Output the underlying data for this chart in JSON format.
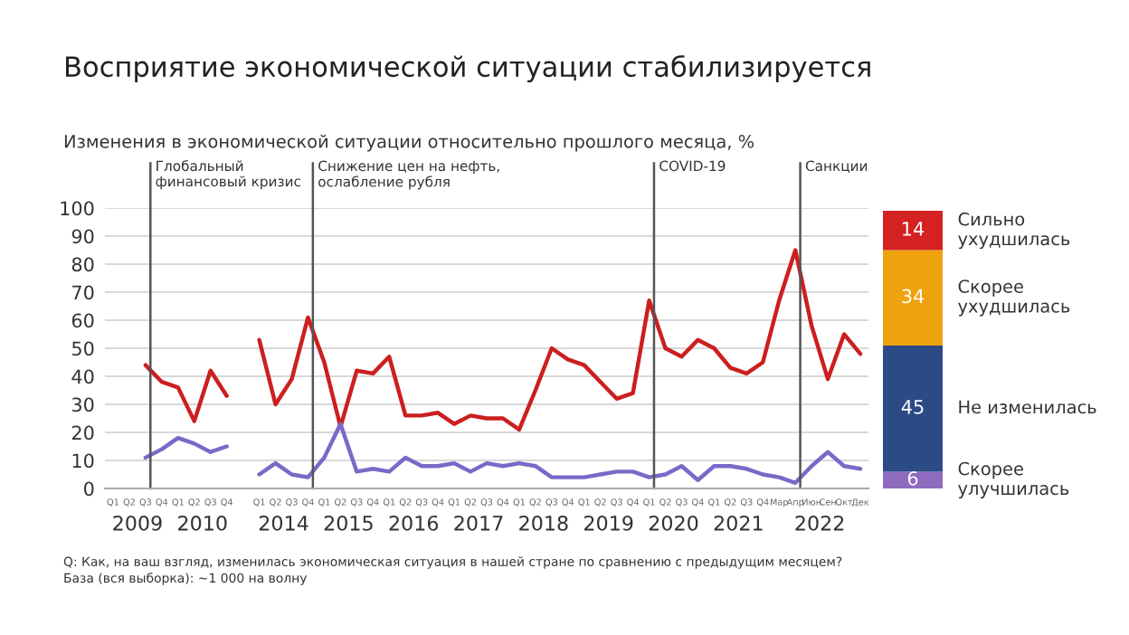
{
  "chart_data": [
    {
      "type": "line",
      "title": "Восприятие экономической ситуации стабилизируется",
      "subtitle": "Изменения в экономической ситуации относительно прошлого месяца, %",
      "categories": [
        "Q1",
        "Q2",
        "Q3",
        "Q4",
        "Q1",
        "Q2",
        "Q3",
        "Q4",
        null,
        "Q1",
        "Q2",
        "Q3",
        "Q4",
        "Q1",
        "Q2",
        "Q3",
        "Q4",
        "Q1",
        "Q2",
        "Q3",
        "Q4",
        "Q1",
        "Q2",
        "Q3",
        "Q4",
        "Q1",
        "Q2",
        "Q3",
        "Q4",
        "Q1",
        "Q2",
        "Q3",
        "Q4",
        "Q1",
        "Q2",
        "Q3",
        "Q4",
        "Q1",
        "Q2",
        "Q3",
        "Q4",
        "Мар",
        "Апр",
        "Июн",
        "Сен",
        "Окт",
        "Дек"
      ],
      "ylim": [
        0,
        100
      ],
      "yticks": [
        0,
        10,
        20,
        30,
        40,
        50,
        60,
        70,
        80,
        90,
        100
      ],
      "grid": "y",
      "series": [
        {
          "color": "#cc1f1f",
          "values": [
            null,
            null,
            44,
            38,
            36,
            24,
            42,
            33,
            null,
            53,
            30,
            39,
            61,
            45,
            22,
            42,
            41,
            47,
            26,
            26,
            27,
            23,
            26,
            25,
            25,
            21,
            35,
            50,
            46,
            44,
            38,
            32,
            34,
            67,
            50,
            47,
            53,
            50,
            43,
            41,
            45,
            67,
            85,
            58,
            39,
            55,
            48
          ]
        },
        {
          "color": "#7b68c8",
          "values": [
            null,
            null,
            11,
            14,
            18,
            16,
            13,
            15,
            null,
            5,
            9,
            5,
            4,
            11,
            23,
            6,
            7,
            6,
            11,
            8,
            8,
            9,
            6,
            9,
            8,
            9,
            8,
            4,
            4,
            4,
            5,
            6,
            6,
            4,
            5,
            8,
            3,
            8,
            8,
            7,
            5,
            4,
            2,
            8,
            13,
            8,
            7
          ]
        }
      ],
      "annotations": [
        {
          "text": "Глобальный\nфинансовый кризис"
        },
        {
          "text": "Снижение цен на нефть,\nослабление рубля"
        },
        {
          "text": "COVID-19"
        },
        {
          "text": "Санкции"
        },
        "2009",
        "2010",
        "2014",
        "2015",
        "2016",
        "2017",
        "2018",
        "2019",
        "2020",
        "2021",
        "2022",
        "Q: Как, на ваш взгляд, изменилась экономическая ситуация в нашей стране по сравнению с предыдущим месяцем?",
        "База (вся выборка): ~1 000 на волну"
      ]
    },
    {
      "type": "bar",
      "categories": [
        null
      ],
      "stacked": true,
      "data_labels": true,
      "ylim": [
        0,
        100
      ],
      "series": [
        {
          "name": "Скорее\nулучшилась",
          "color": "#8e6bbf",
          "values": [
            6
          ]
        },
        {
          "name": "Не изменилась",
          "color": "#2c4a86",
          "values": [
            45
          ]
        },
        {
          "name": "Скорее\nухудшилась",
          "color": "#eea30e",
          "values": [
            34
          ]
        },
        {
          "name": "Сильно\nухудшилась",
          "color": "#d42222",
          "values": [
            14
          ]
        }
      ]
    }
  ]
}
